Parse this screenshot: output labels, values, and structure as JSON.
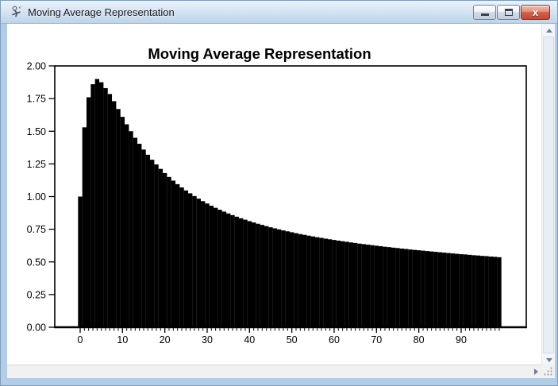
{
  "window": {
    "title": "Moving Average Representation",
    "close_glyph": "x"
  },
  "colors": {
    "titlebar_top": "#eaf2fb",
    "titlebar_bottom": "#bdd4ea",
    "window_border_blue": "#b3cde9",
    "close_button_red": "#d2604a",
    "bar_color": "#000000",
    "canvas_background": "#ffffff"
  },
  "chart_data": {
    "type": "bar",
    "title": "Moving Average Representation",
    "xlabel": "",
    "ylabel": "",
    "ylim": [
      0,
      2
    ],
    "x_range": [
      0,
      99
    ],
    "grid": false,
    "legend": null,
    "bar_color": "#000000",
    "y_tick_values": [
      0,
      0.25,
      0.5,
      0.75,
      1.0,
      1.25,
      1.5,
      1.75,
      2.0
    ],
    "y_tick_labels": [
      "0.00",
      "0.25",
      "0.50",
      "0.75",
      "1.00",
      "1.25",
      "1.50",
      "1.75",
      "2.00"
    ],
    "x_tick_values": [
      0,
      10,
      20,
      30,
      40,
      50,
      60,
      70,
      80,
      90
    ],
    "x_tick_labels": [
      "0",
      "10",
      "20",
      "30",
      "40",
      "50",
      "60",
      "70",
      "80",
      "90"
    ],
    "x_minor_tick_step": 1,
    "values": [
      1.0,
      1.53,
      1.76,
      1.86,
      1.9,
      1.875,
      1.83,
      1.785,
      1.73,
      1.67,
      1.61,
      1.553,
      1.5,
      1.45,
      1.404,
      1.36,
      1.32,
      1.282,
      1.246,
      1.212,
      1.18,
      1.15,
      1.122,
      1.095,
      1.07,
      1.047,
      1.025,
      1.004,
      0.984,
      0.965,
      0.947,
      0.93,
      0.914,
      0.899,
      0.885,
      0.871,
      0.858,
      0.846,
      0.834,
      0.823,
      0.812,
      0.802,
      0.792,
      0.783,
      0.774,
      0.765,
      0.757,
      0.749,
      0.741,
      0.734,
      0.727,
      0.72,
      0.713,
      0.707,
      0.701,
      0.695,
      0.689,
      0.684,
      0.678,
      0.673,
      0.668,
      0.663,
      0.658,
      0.654,
      0.649,
      0.645,
      0.64,
      0.636,
      0.632,
      0.628,
      0.624,
      0.62,
      0.616,
      0.613,
      0.609,
      0.606,
      0.602,
      0.599,
      0.595,
      0.592,
      0.589,
      0.586,
      0.583,
      0.58,
      0.577,
      0.574,
      0.571,
      0.568,
      0.565,
      0.562,
      0.559,
      0.557,
      0.554,
      0.551,
      0.549,
      0.546,
      0.544,
      0.541,
      0.539,
      0.536
    ]
  }
}
